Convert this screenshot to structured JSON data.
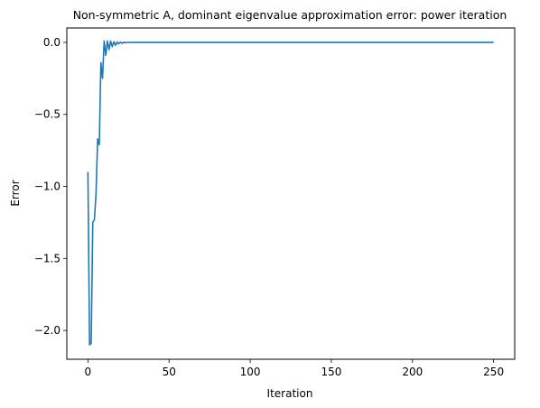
{
  "chart_data": {
    "type": "line",
    "title": "Non-symmetric A, dominant eigenvalue approximation error: power iteration",
    "xlabel": "Iteration",
    "ylabel": "Error",
    "xlim": [
      -13,
      263
    ],
    "ylim": [
      -2.2,
      0.1
    ],
    "xticks": [
      0,
      50,
      100,
      150,
      200,
      250
    ],
    "xtick_labels": [
      "0",
      "50",
      "100",
      "150",
      "200",
      "250"
    ],
    "yticks": [
      0.0,
      -0.5,
      -1.0,
      -1.5,
      -2.0
    ],
    "ytick_labels": [
      "0.0",
      "−0.5",
      "−1.0",
      "−1.5",
      "−2.0"
    ],
    "grid": false,
    "line_color": "#1f77b4",
    "series": [
      {
        "name": "",
        "x": [
          0,
          1,
          2,
          3,
          4,
          5,
          6,
          7,
          8,
          9,
          10,
          11,
          12,
          13,
          14,
          15,
          16,
          17,
          18,
          19,
          20,
          21,
          22,
          23,
          24,
          25,
          26,
          28,
          30,
          35,
          40,
          50,
          60,
          80,
          100,
          150,
          200,
          250
        ],
        "y": [
          -0.9,
          -2.1,
          -2.09,
          -1.25,
          -1.23,
          -1.05,
          -0.67,
          -0.71,
          -0.14,
          -0.25,
          0.01,
          -0.09,
          0.01,
          -0.05,
          0.01,
          -0.03,
          0.005,
          -0.02,
          0.003,
          -0.01,
          0.002,
          -0.006,
          0.001,
          -0.003,
          0.0005,
          -0.001,
          0.0,
          0.0,
          0.0,
          0.0,
          0.0,
          0.0,
          0.0,
          0.0,
          0.0,
          0.0,
          0.0,
          0.0
        ]
      }
    ]
  }
}
